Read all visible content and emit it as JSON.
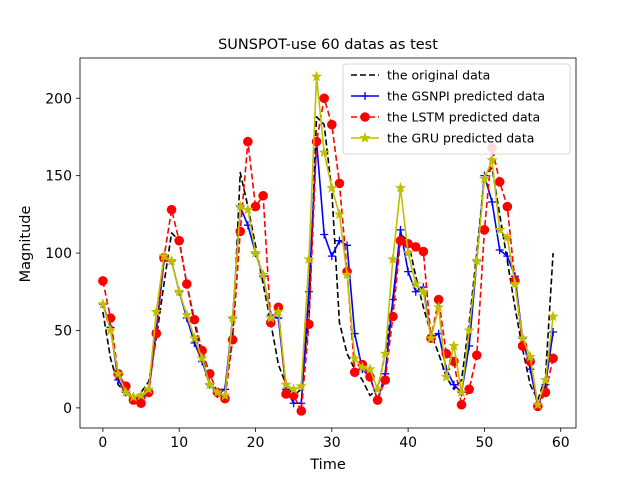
{
  "chart_data": {
    "type": "line",
    "title": "SUNSPOT-use 60 datas as test",
    "xlabel": "Time",
    "ylabel": "Magnitude",
    "xlim": [
      -3,
      62
    ],
    "ylim": [
      -13,
      226
    ],
    "xticks": [
      0,
      10,
      20,
      30,
      40,
      50,
      60
    ],
    "yticks": [
      0,
      50,
      100,
      150,
      200
    ],
    "legend_position": "top-right",
    "x": [
      0,
      1,
      2,
      3,
      4,
      5,
      6,
      7,
      8,
      9,
      10,
      11,
      12,
      13,
      14,
      15,
      16,
      17,
      18,
      19,
      20,
      21,
      22,
      23,
      24,
      25,
      26,
      27,
      28,
      29,
      30,
      31,
      32,
      33,
      34,
      35,
      36,
      37,
      38,
      39,
      40,
      41,
      42,
      43,
      44,
      45,
      46,
      47,
      48,
      49,
      50,
      51,
      52,
      53,
      54,
      55,
      56,
      57,
      58,
      59
    ],
    "series": [
      {
        "name": "the original data",
        "color": "#000000",
        "style": "dashed",
        "marker": "none",
        "values": [
          62,
          32,
          15,
          10,
          5,
          10,
          17,
          45,
          80,
          113,
          108,
          80,
          55,
          33,
          17,
          9,
          12,
          45,
          152,
          130,
          105,
          80,
          55,
          28,
          15,
          8,
          12,
          58,
          188,
          183,
          140,
          55,
          35,
          25,
          18,
          8,
          12,
          35,
          68,
          112,
          108,
          85,
          65,
          48,
          35,
          20,
          12,
          18,
          55,
          100,
          150,
          155,
          125,
          95,
          65,
          38,
          15,
          5,
          20,
          100
        ]
      },
      {
        "name": "the GSNPI predicted data",
        "color": "#0000ff",
        "style": "solid",
        "marker": "plus",
        "values": [
          67,
          52,
          18,
          10,
          7,
          6,
          10,
          50,
          95,
          95,
          75,
          58,
          42,
          30,
          15,
          9,
          12,
          58,
          130,
          118,
          100,
          85,
          60,
          58,
          12,
          3,
          3,
          75,
          172,
          112,
          98,
          108,
          105,
          48,
          25,
          20,
          5,
          22,
          70,
          115,
          88,
          75,
          78,
          45,
          48,
          25,
          15,
          10,
          40,
          95,
          150,
          133,
          102,
          98,
          85,
          45,
          25,
          1,
          15,
          49
        ]
      },
      {
        "name": "the LSTM predicted data",
        "color": "#ff0000",
        "style": "dashed",
        "marker": "circle",
        "values": [
          82,
          58,
          22,
          14,
          5,
          3,
          10,
          48,
          97,
          128,
          108,
          80,
          57,
          37,
          22,
          10,
          6,
          44,
          114,
          172,
          130,
          137,
          55,
          65,
          9,
          8,
          -2,
          54,
          172,
          200,
          183,
          145,
          88,
          23,
          28,
          20,
          5,
          18,
          59,
          108,
          106,
          104,
          101,
          45,
          70,
          35,
          30,
          2,
          12,
          34,
          115,
          168,
          146,
          130,
          82,
          40,
          30,
          1,
          10,
          32
        ]
      },
      {
        "name": "the GRU predicted data",
        "color": "#bfbf00",
        "style": "solid",
        "marker": "star",
        "values": [
          67,
          50,
          22,
          10,
          7,
          8,
          12,
          62,
          98,
          95,
          75,
          60,
          45,
          32,
          15,
          10,
          8,
          58,
          130,
          128,
          100,
          86,
          58,
          62,
          15,
          12,
          14,
          96,
          214,
          165,
          142,
          125,
          86,
          32,
          26,
          25,
          12,
          35,
          96,
          142,
          100,
          80,
          75,
          45,
          65,
          20,
          40,
          10,
          50,
          95,
          148,
          160,
          115,
          110,
          80,
          45,
          33,
          2,
          18,
          59
        ]
      }
    ]
  }
}
